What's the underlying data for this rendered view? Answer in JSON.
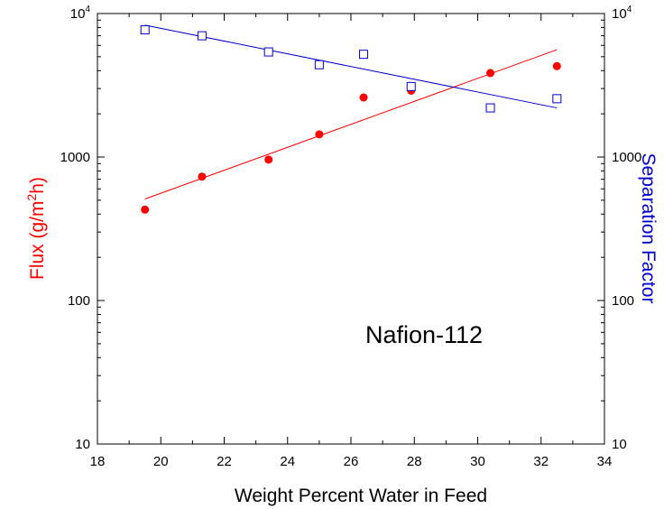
{
  "chart_data": {
    "type": "scatter",
    "xlabel": "Weight Percent Water in Feed",
    "ylabel": {
      "text": "Flux (g/m",
      "sup": "2",
      "tail": "h)"
    },
    "y2label": "Separation Factor",
    "annotation": "Nafion-112",
    "xlim": [
      18,
      34
    ],
    "xticks": [
      18,
      20,
      22,
      24,
      26,
      28,
      30,
      32,
      34
    ],
    "ylim": [
      10,
      10000
    ],
    "yticks": [
      10,
      100,
      1000,
      {
        "value": 10000,
        "label": "10",
        "exponent": "4"
      }
    ],
    "y2lim": [
      10,
      10000
    ],
    "y2ticks": [
      10,
      100,
      1000,
      {
        "value": 10000,
        "label": "10",
        "exponent": "4"
      }
    ],
    "log_y": true,
    "grid": false,
    "series": [
      {
        "color": "#ff0000",
        "marker": "circle",
        "x": [
          19.5,
          21.3,
          23.4,
          25.0,
          26.4,
          27.9,
          30.4,
          32.5
        ],
        "values": [
          430,
          730,
          960,
          1440,
          2600,
          2900,
          3850,
          4300
        ],
        "fit": {
          "x": [
            19.5,
            32.5
          ],
          "values": [
            510,
            5600
          ]
        }
      },
      {
        "color": "#0000cc",
        "marker": "square",
        "axis": "y2",
        "x": [
          19.5,
          21.3,
          23.4,
          25.0,
          26.4,
          27.9,
          30.4,
          32.5
        ],
        "values": [
          7700,
          7000,
          5400,
          4400,
          5200,
          3100,
          2200,
          2550
        ],
        "fit": {
          "x": [
            19.5,
            32.5
          ],
          "values": [
            8300,
            2200
          ]
        }
      }
    ]
  }
}
